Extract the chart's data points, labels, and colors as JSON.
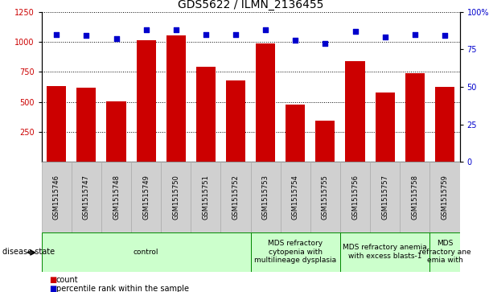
{
  "title": "GDS5622 / ILMN_2136455",
  "samples": [
    "GSM1515746",
    "GSM1515747",
    "GSM1515748",
    "GSM1515749",
    "GSM1515750",
    "GSM1515751",
    "GSM1515752",
    "GSM1515753",
    "GSM1515754",
    "GSM1515755",
    "GSM1515756",
    "GSM1515757",
    "GSM1515758",
    "GSM1515759"
  ],
  "counts": [
    630,
    620,
    505,
    1010,
    1050,
    790,
    680,
    985,
    480,
    345,
    840,
    575,
    740,
    625
  ],
  "percentiles": [
    85,
    84,
    82,
    88,
    88,
    85,
    85,
    88,
    81,
    79,
    87,
    83,
    85,
    84
  ],
  "ylim_left": [
    0,
    1250
  ],
  "ylim_right": [
    0,
    100
  ],
  "yticks_left": [
    250,
    500,
    750,
    1000,
    1250
  ],
  "yticks_right": [
    0,
    25,
    50,
    75,
    100
  ],
  "bar_color": "#CC0000",
  "dot_color": "#0000CC",
  "bg_color": "#FFFFFF",
  "disease_groups": [
    {
      "label": "control",
      "start": 0,
      "end": 7
    },
    {
      "label": "MDS refractory\ncytopenia with\nmultilineage dysplasia",
      "start": 7,
      "end": 10
    },
    {
      "label": "MDS refractory anemia\nwith excess blasts-1",
      "start": 10,
      "end": 13
    },
    {
      "label": "MDS\nrefractory ane\nemia with",
      "start": 13,
      "end": 14
    }
  ],
  "disease_state_label": "disease state",
  "legend_count": "count",
  "legend_pct": "percentile rank within the sample",
  "title_fontsize": 10,
  "tick_fontsize": 7,
  "group_fontsize": 6.5,
  "sample_fontsize": 6
}
